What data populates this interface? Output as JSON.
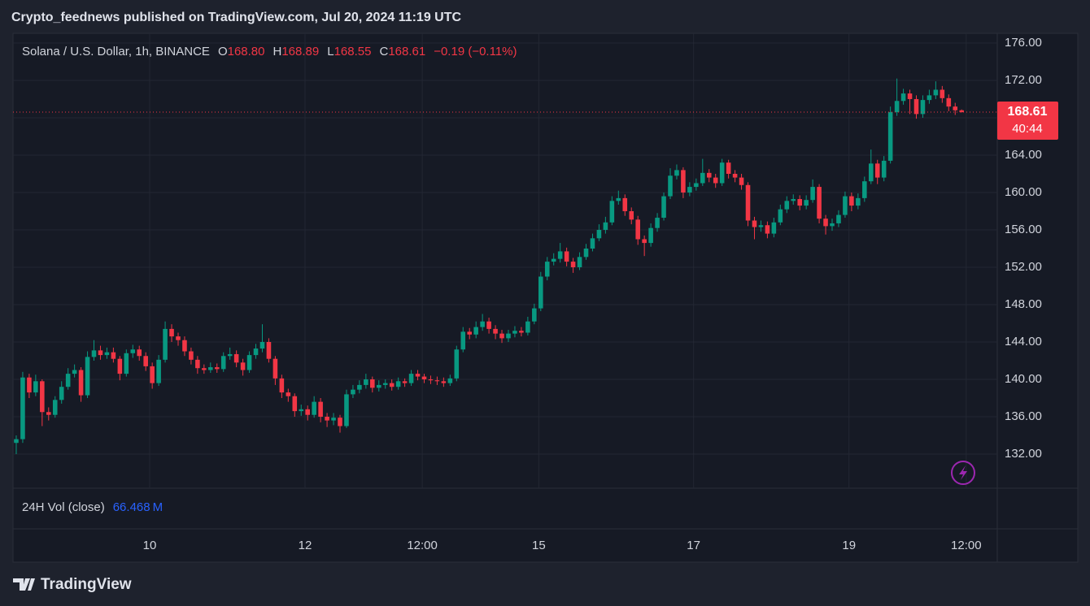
{
  "header": {
    "published": "Crypto_feednews published on TradingView.com, Jul 20, 2024 11:19 UTC",
    "symbol": "Solana / U.S. Dollar, 1h, BINANCE",
    "ohlc": [
      {
        "key": "O",
        "value": "168.80"
      },
      {
        "key": "H",
        "value": "168.89"
      },
      {
        "key": "L",
        "value": "168.55"
      },
      {
        "key": "C",
        "value": "168.61"
      }
    ],
    "change": "−0.19 (−0.11%)"
  },
  "volume": {
    "label": "24H Vol (close)",
    "value": "66.468",
    "unit": "M"
  },
  "countdown": "40:44",
  "footer": "TradingView",
  "chart_data": {
    "type": "candlestick",
    "up_color": "#089981",
    "down_color": "#f23645",
    "grid": true,
    "xlim": [
      -0.5,
      151.5
    ],
    "xticks": [
      {
        "value": 20.6,
        "label": "10"
      },
      {
        "value": 44.6,
        "label": "12"
      },
      {
        "value": 62.7,
        "label": "12:00"
      },
      {
        "value": 80.7,
        "label": "15"
      },
      {
        "value": 104.6,
        "label": "17"
      },
      {
        "value": 128.6,
        "label": "19"
      },
      {
        "value": 146.7,
        "label": "12:00"
      }
    ],
    "ylim": [
      128.35,
      177.04
    ],
    "yticks": [
      {
        "value": 132,
        "label": "132.00"
      },
      {
        "value": 136,
        "label": "136.00"
      },
      {
        "value": 140,
        "label": "140.00"
      },
      {
        "value": 144,
        "label": "144.00"
      },
      {
        "value": 148,
        "label": "148.00"
      },
      {
        "value": 152,
        "label": "152.00"
      },
      {
        "value": 156,
        "label": "156.00"
      },
      {
        "value": 160,
        "label": "160.00"
      },
      {
        "value": 164,
        "label": "164.00"
      },
      {
        "value": 168,
        "label": "168.00"
      },
      {
        "value": 172,
        "label": "172.00"
      },
      {
        "value": 176,
        "label": "176.00"
      }
    ],
    "open": [
      133.2,
      133.6,
      140.2,
      138.6,
      139.8,
      136.5,
      136.2,
      137.8,
      139.2,
      140.6,
      141.0,
      138.3,
      142.4,
      143.1,
      142.6,
      142.9,
      142.2,
      140.6,
      142.8,
      143.2,
      142.5,
      141.4,
      139.6,
      142.1,
      145.4,
      144.6,
      144.2,
      143.0,
      142.1,
      141.2,
      141.0,
      141.3,
      141.1,
      142.5,
      142.7,
      141.8,
      141.0,
      142.6,
      143.3,
      144.0,
      142.2,
      140.1,
      138.6,
      138.2,
      136.6,
      136.8,
      136.2,
      137.6,
      136.0,
      135.6,
      135.9,
      135.0,
      138.4,
      138.9,
      139.4,
      140.0,
      139.1,
      139.4,
      139.6,
      139.2,
      139.8,
      139.6,
      140.6,
      140.3,
      140.0,
      139.9,
      139.8,
      139.6,
      140.1,
      143.2,
      145.1,
      144.8,
      145.6,
      146.2,
      145.4,
      144.9,
      144.4,
      144.9,
      145.2,
      145.0,
      146.2,
      147.6,
      151.0,
      152.6,
      152.9,
      153.7,
      152.6,
      152.0,
      153.1,
      154.0,
      155.1,
      156.0,
      156.8,
      159.1,
      159.4,
      158.0,
      157.1,
      155.0,
      154.6,
      156.2,
      157.3,
      159.6,
      161.8,
      162.4,
      160.0,
      160.6,
      161.0,
      162.1,
      161.6,
      161.0,
      163.2,
      162.0,
      161.6,
      160.8,
      157.0,
      156.3,
      156.5,
      155.6,
      156.8,
      158.2,
      159.1,
      159.3,
      158.6,
      159.2,
      160.6,
      157.2,
      156.4,
      156.7,
      157.6,
      159.6,
      158.6,
      159.4,
      161.2,
      163.1,
      161.6,
      163.4,
      168.6,
      169.8,
      170.6,
      170.0,
      168.4,
      169.9,
      170.4,
      171.0,
      170.1,
      169.2,
      168.8
    ],
    "high": [
      134.0,
      140.8,
      140.6,
      140.5,
      140.0,
      137.0,
      138.2,
      139.8,
      141.2,
      141.6,
      141.3,
      143.0,
      144.2,
      143.6,
      143.4,
      143.4,
      142.5,
      143.2,
      143.7,
      143.6,
      142.9,
      141.8,
      142.6,
      146.2,
      145.9,
      145.0,
      144.6,
      143.4,
      142.5,
      141.6,
      141.8,
      141.7,
      142.9,
      143.4,
      143.1,
      142.2,
      143.0,
      143.8,
      145.9,
      144.4,
      142.5,
      140.5,
      139.0,
      138.5,
      137.3,
      137.2,
      138.2,
      138.0,
      136.4,
      136.4,
      136.2,
      138.9,
      139.4,
      139.9,
      140.6,
      140.3,
      139.9,
      140.0,
      140.0,
      140.2,
      140.1,
      141.0,
      141.0,
      140.6,
      140.4,
      140.3,
      140.2,
      140.5,
      143.6,
      145.6,
      145.5,
      146.2,
      147.0,
      146.6,
      145.8,
      145.3,
      145.3,
      145.7,
      145.6,
      146.7,
      148.1,
      151.5,
      153.1,
      153.5,
      154.6,
      154.1,
      153.0,
      153.6,
      154.5,
      155.6,
      156.6,
      157.4,
      159.6,
      160.2,
      159.8,
      158.4,
      157.5,
      155.4,
      156.7,
      157.8,
      160.0,
      162.6,
      163.0,
      162.7,
      161.1,
      161.5,
      163.6,
      162.5,
      162.0,
      163.6,
      163.5,
      162.4,
      162.0,
      161.1,
      157.4,
      157.0,
      156.9,
      157.3,
      158.7,
      159.6,
      159.8,
      159.7,
      159.7,
      161.4,
      160.9,
      157.6,
      157.2,
      158.1,
      160.1,
      160.0,
      159.9,
      161.7,
      164.6,
      163.5,
      163.9,
      169.2,
      172.2,
      171.1,
      171.0,
      170.4,
      170.4,
      171.0,
      171.9,
      171.4,
      170.5,
      169.6,
      168.89
    ],
    "low": [
      132.0,
      133.2,
      138.0,
      138.2,
      135.0,
      135.6,
      135.9,
      137.4,
      138.9,
      140.2,
      137.6,
      138.0,
      142.0,
      142.1,
      142.2,
      141.8,
      139.9,
      140.3,
      142.3,
      142.0,
      140.9,
      139.0,
      139.3,
      141.8,
      144.0,
      143.6,
      142.5,
      141.6,
      140.6,
      140.6,
      140.7,
      140.7,
      140.8,
      142.1,
      141.3,
      140.4,
      140.7,
      142.2,
      142.9,
      141.8,
      139.4,
      138.0,
      137.6,
      136.0,
      136.1,
      135.6,
      135.9,
      135.4,
      134.9,
      135.1,
      134.3,
      134.8,
      138.0,
      138.5,
      139.0,
      138.6,
      138.7,
      139.0,
      138.8,
      138.9,
      139.2,
      139.3,
      139.9,
      139.6,
      139.5,
      139.4,
      139.2,
      139.3,
      139.8,
      142.9,
      144.3,
      144.4,
      145.2,
      144.9,
      144.3,
      143.9,
      144.0,
      144.5,
      144.6,
      144.7,
      145.9,
      147.3,
      150.6,
      152.2,
      152.5,
      152.1,
      151.4,
      151.7,
      152.8,
      153.7,
      154.8,
      155.6,
      156.5,
      158.7,
      157.5,
      156.6,
      154.4,
      153.2,
      154.2,
      155.8,
      157.0,
      159.3,
      161.4,
      159.4,
      159.6,
      160.2,
      160.7,
      161.1,
      160.5,
      160.7,
      161.5,
      161.1,
      160.3,
      156.4,
      155.0,
      155.8,
      155.1,
      155.2,
      156.5,
      157.8,
      158.7,
      158.1,
      158.2,
      158.9,
      156.7,
      155.5,
      155.9,
      156.3,
      157.3,
      158.0,
      158.2,
      159.0,
      160.9,
      160.9,
      161.2,
      163.1,
      168.2,
      169.4,
      168.4,
      167.9,
      168.0,
      169.5,
      170.0,
      169.6,
      168.7,
      168.3,
      168.55
    ],
    "close": [
      133.6,
      140.2,
      138.6,
      139.8,
      136.5,
      136.2,
      137.8,
      139.2,
      140.6,
      141.0,
      138.3,
      142.4,
      143.1,
      142.6,
      142.9,
      142.2,
      140.6,
      142.8,
      143.2,
      142.5,
      141.4,
      139.6,
      142.1,
      145.4,
      144.6,
      144.2,
      143.0,
      142.1,
      141.2,
      141.0,
      141.3,
      141.1,
      142.5,
      142.7,
      141.8,
      141.0,
      142.6,
      143.3,
      144.0,
      142.2,
      140.1,
      138.6,
      138.2,
      136.6,
      136.8,
      136.2,
      137.6,
      136.0,
      135.6,
      135.9,
      135.0,
      138.4,
      138.9,
      139.4,
      140.0,
      139.1,
      139.4,
      139.6,
      139.2,
      139.8,
      139.6,
      140.6,
      140.3,
      140.0,
      139.9,
      139.8,
      139.6,
      140.1,
      143.2,
      145.1,
      144.8,
      145.6,
      146.2,
      145.4,
      144.9,
      144.4,
      144.9,
      145.2,
      145.0,
      146.2,
      147.6,
      151.0,
      152.6,
      152.9,
      153.7,
      152.6,
      152.0,
      153.1,
      154.0,
      155.1,
      156.0,
      156.8,
      159.1,
      159.4,
      158.0,
      157.1,
      155.0,
      154.6,
      156.2,
      157.3,
      159.6,
      161.8,
      162.4,
      160.0,
      160.6,
      161.0,
      162.1,
      161.6,
      161.0,
      163.2,
      162.0,
      161.6,
      160.8,
      157.0,
      156.3,
      156.5,
      155.6,
      156.8,
      158.2,
      159.1,
      159.3,
      158.6,
      159.2,
      160.6,
      157.2,
      156.4,
      156.7,
      157.6,
      159.6,
      158.6,
      159.4,
      161.2,
      163.1,
      161.6,
      163.4,
      168.6,
      169.8,
      170.6,
      170.0,
      168.4,
      169.9,
      170.4,
      171.0,
      170.1,
      169.2,
      168.8,
      168.61
    ]
  }
}
